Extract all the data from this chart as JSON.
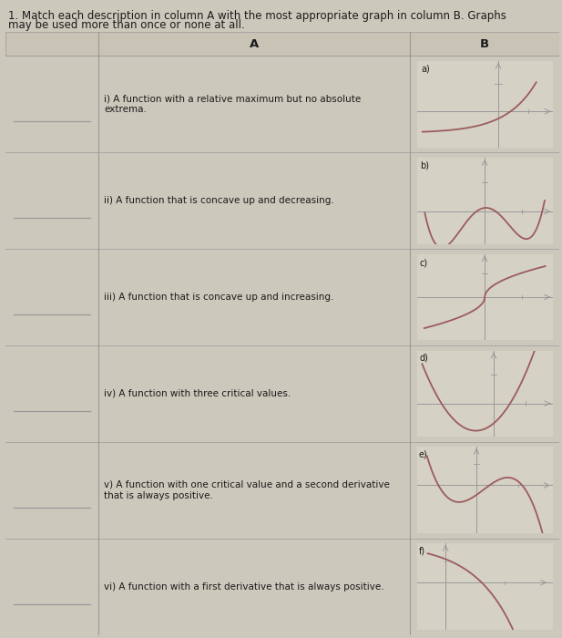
{
  "title_line1": "1. Match each description in column A with the most appropriate graph in column B. Graphs",
  "title_line2": "may be used more than once or none at all.",
  "col_a_header": "A",
  "col_b_header": "B",
  "descriptions": [
    "i) A function with a relative maximum but no absolute\nextrema.",
    "ii) A function that is concave up and decreasing.",
    "iii) A function that is concave up and increasing.",
    "iv) A function with three critical values.",
    "v) A function with one critical value and a second derivative\nthat is always positive.",
    "vi) A function with a first derivative that is always positive."
  ],
  "graph_labels": [
    "a)",
    "b)",
    "c)",
    "d)",
    "e)",
    "f)"
  ],
  "bg_color": "#cdc8bc",
  "cell_bg": "#d6d1c5",
  "curve_color": "#9b5c5c",
  "axis_color": "#999999",
  "border_color": "#999999",
  "text_color": "#1a1a1a",
  "header_bg": "#c8c3b5",
  "title_fontsize": 8.5,
  "desc_fontsize": 7.5,
  "graph_label_fontsize": 7.0
}
